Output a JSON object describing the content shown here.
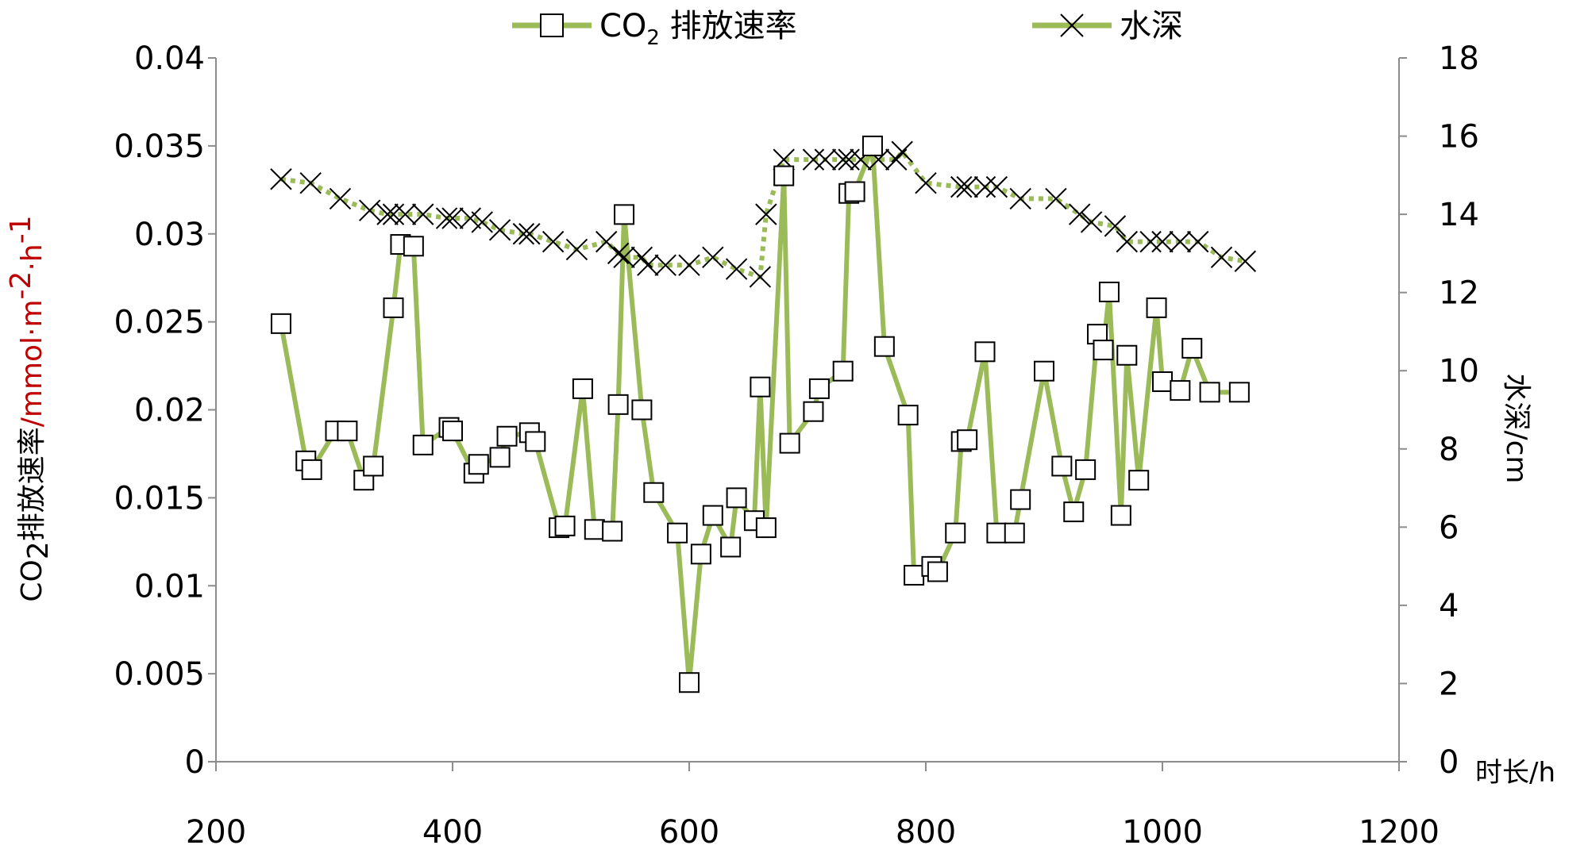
{
  "colors": {
    "series_line": "#9bbb59",
    "marker_stroke": "#000000",
    "marker_fill": "#ffffff",
    "ylabel_unit": "#c00000",
    "axis": "#8c8c8c"
  },
  "chart_data": {
    "type": "line",
    "x_axis": {
      "range": [
        200,
        1200
      ],
      "ticks": [
        "200",
        "400",
        "600",
        "800",
        "1000",
        "1200"
      ],
      "unit_label": "时长/h"
    },
    "y_left": {
      "range": [
        0,
        0.04
      ],
      "ticks": [
        "0",
        "0.005",
        "0.01",
        "0.015",
        "0.02",
        "0.025",
        "0.03",
        "0.035",
        "0.04"
      ],
      "label_prefix": "CO",
      "label_sub": "2",
      "label_suffix": "排放速率",
      "label_unit": "/mmol·m",
      "label_unit_sup1": "-2",
      "label_unit_mid": "·h",
      "label_unit_sup2": "-1"
    },
    "y_right": {
      "range": [
        0,
        18
      ],
      "ticks": [
        "0",
        "2",
        "4",
        "6",
        "8",
        "10",
        "12",
        "14",
        "16",
        "18"
      ],
      "label": "水深/cm"
    },
    "legend": {
      "position": "top-center",
      "co2_prefix": "CO",
      "co2_sub": "2",
      "co2_suffix": " 排放速率",
      "depth": "水深"
    },
    "series": [
      {
        "name": "CO2 排放速率",
        "axis": "left",
        "marker": "square",
        "x": [
          255,
          276,
          281,
          301,
          311,
          325,
          333,
          350,
          356,
          367,
          375,
          397,
          400,
          418,
          422,
          440,
          446,
          465,
          470,
          490,
          495,
          510,
          520,
          535,
          540,
          545,
          560,
          570,
          590,
          600,
          610,
          620,
          635,
          640,
          655,
          660,
          665,
          680,
          685,
          705,
          710,
          730,
          735,
          740,
          755,
          765,
          785,
          790,
          805,
          810,
          825,
          830,
          835,
          850,
          860,
          875,
          880,
          900,
          915,
          925,
          935,
          945,
          950,
          955,
          965,
          970,
          980,
          995,
          1000,
          1015,
          1025,
          1040,
          1065
        ],
        "y": [
          0.0249,
          0.0171,
          0.0166,
          0.0188,
          0.0188,
          0.016,
          0.0168,
          0.0258,
          0.0294,
          0.0293,
          0.018,
          0.019,
          0.0188,
          0.0164,
          0.0169,
          0.0173,
          0.0185,
          0.0187,
          0.0182,
          0.0133,
          0.0134,
          0.0212,
          0.0132,
          0.0131,
          0.0203,
          0.0311,
          0.02,
          0.0153,
          0.013,
          0.0045,
          0.0118,
          0.014,
          0.0122,
          0.015,
          0.0137,
          0.0213,
          0.0133,
          0.0333,
          0.0181,
          0.0199,
          0.0212,
          0.0222,
          0.0323,
          0.0324,
          0.035,
          0.0236,
          0.0197,
          0.0106,
          0.0111,
          0.0108,
          0.013,
          0.0182,
          0.0183,
          0.0233,
          0.013,
          0.013,
          0.0149,
          0.0222,
          0.0168,
          0.0142,
          0.0166,
          0.0243,
          0.0234,
          0.0267,
          0.014,
          0.0231,
          0.016,
          0.0258,
          0.0216,
          0.0211,
          0.0235,
          0.021,
          0.021
        ]
      },
      {
        "name": "水深",
        "axis": "right",
        "marker": "x",
        "x": [
          255,
          280,
          305,
          330,
          345,
          350,
          360,
          375,
          395,
          400,
          415,
          425,
          440,
          460,
          465,
          485,
          505,
          530,
          540,
          545,
          560,
          565,
          580,
          600,
          620,
          640,
          660,
          665,
          680,
          705,
          715,
          730,
          735,
          745,
          760,
          775,
          780,
          800,
          830,
          835,
          850,
          860,
          880,
          910,
          930,
          940,
          960,
          970,
          990,
          1000,
          1015,
          1030,
          1050,
          1070
        ],
        "y": [
          14.9,
          14.8,
          14.4,
          14.1,
          14.0,
          14.0,
          14.0,
          14.0,
          13.9,
          13.9,
          13.9,
          13.8,
          13.6,
          13.5,
          13.5,
          13.3,
          13.1,
          13.3,
          13.0,
          12.9,
          12.9,
          12.7,
          12.7,
          12.7,
          12.9,
          12.6,
          12.4,
          14.0,
          15.4,
          15.4,
          15.4,
          15.4,
          15.4,
          15.4,
          15.4,
          15.4,
          15.6,
          14.8,
          14.7,
          14.7,
          14.7,
          14.7,
          14.4,
          14.4,
          14.0,
          13.8,
          13.7,
          13.3,
          13.3,
          13.3,
          13.3,
          13.3,
          12.9,
          12.8
        ]
      }
    ]
  }
}
